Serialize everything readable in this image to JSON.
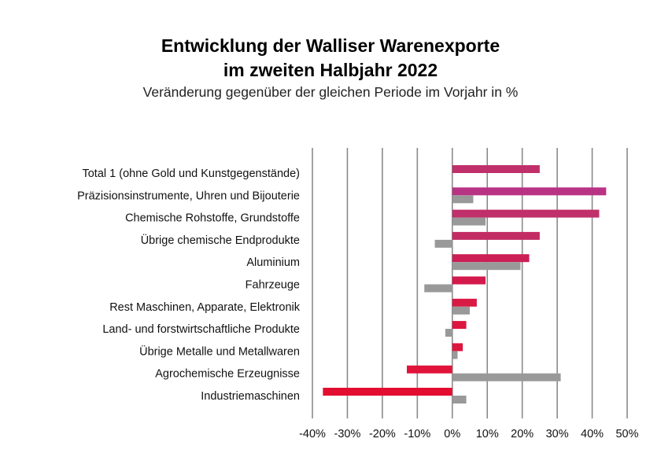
{
  "chart_data": {
    "type": "bar",
    "orientation": "horizontal",
    "title_lines": [
      "Entwicklung der Walliser Warenexporte",
      "im zweiten Halbjahr 2022"
    ],
    "subtitle": "Veränderung gegenüber der gleichen Periode im Vorjahr in %",
    "categories": [
      "Total 1 (ohne Gold und Kunstgegenstände)",
      "Präzisionsinstrumente, Uhren und Bijouterie",
      "Chemische Rohstoffe, Grundstoffe",
      "Übrige chemische Endprodukte",
      "Aluminium",
      "Fahrzeuge",
      "Rest Maschinen, Apparate, Elektronik",
      "Land- und forstwirtschaftliche Produkte",
      "Übrige Metalle und Metallwaren",
      "Agrochemische Erzeugnisse",
      "Industriemaschinen"
    ],
    "series": [
      {
        "values": [
          25,
          44,
          42,
          25,
          22,
          9.5,
          7,
          4,
          3,
          -13,
          -37
        ],
        "colors": [
          "#c0306a",
          "#b93385",
          "#c0306a",
          "#c32c62",
          "#cc1f55",
          "#d41a4c",
          "#d81a45",
          "#dc1640",
          "#dc163e",
          "#e0133a",
          "#e20d30"
        ]
      },
      {
        "values": [
          null,
          6,
          9.5,
          -5,
          19.5,
          -8,
          5,
          -2,
          1.5,
          31,
          4
        ],
        "color": "#999999"
      }
    ],
    "xlim": [
      -40,
      50
    ],
    "xticks": [
      -40,
      -30,
      -20,
      -10,
      0,
      10,
      20,
      30,
      40,
      50
    ],
    "xtick_labels": [
      "-40%",
      "-30%",
      "-20%",
      "-10%",
      "0%",
      "10%",
      "20%",
      "30%",
      "40%",
      "50%"
    ],
    "grid": true,
    "legend": "none"
  }
}
